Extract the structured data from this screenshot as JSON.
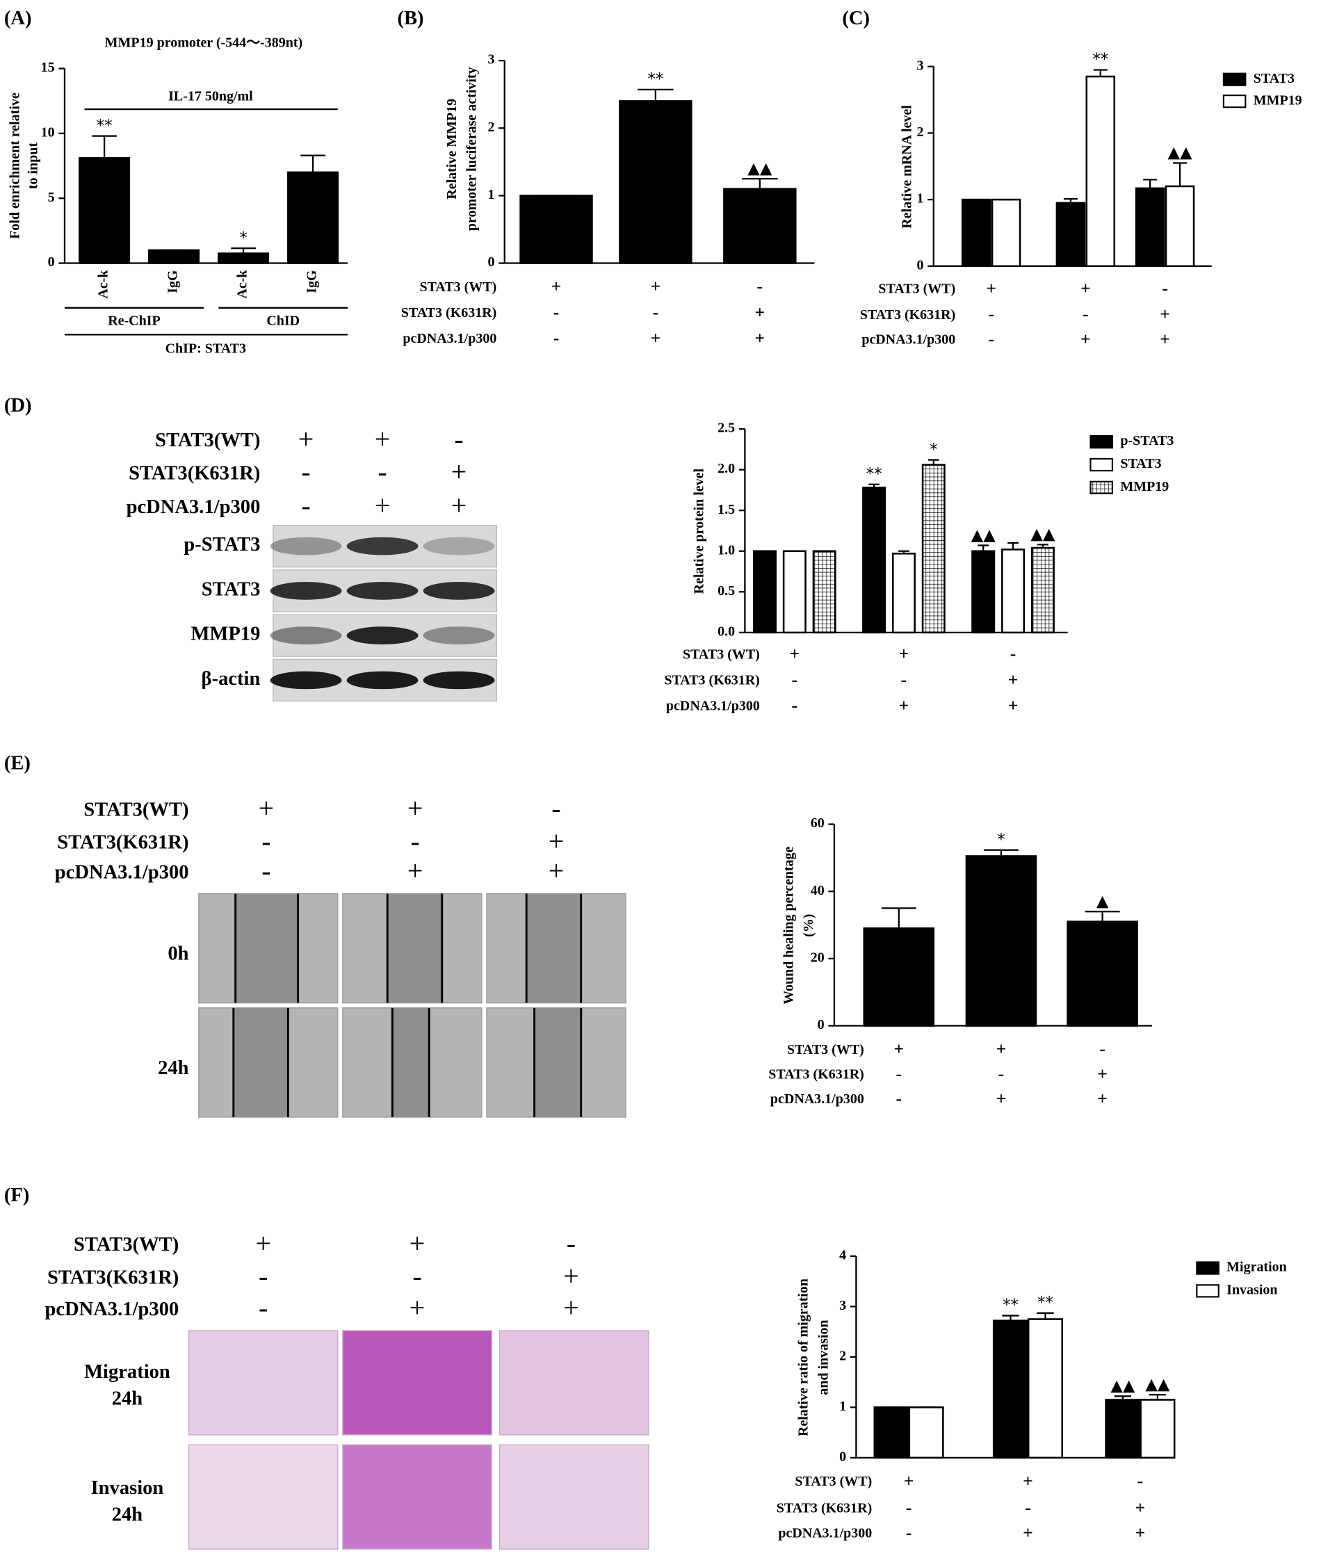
{
  "chart_data": [
    {
      "type": "bar",
      "panel": "(A)",
      "title": "MMP19 promoter (-544～-389nt)",
      "ylabel": [
        "Fold enrichment relative",
        "to input"
      ],
      "ylim": [
        0,
        15
      ],
      "yticks": [
        0,
        5,
        10,
        15
      ],
      "categories": [
        "Ac-k",
        "IgG",
        "Ac-k",
        "IgG"
      ],
      "values": [
        8.1,
        1.0,
        0.75,
        7.0
      ],
      "errors": [
        1.7,
        0,
        0.4,
        1.3
      ],
      "marks": [
        "**",
        null,
        "*",
        null
      ],
      "color": "#000000",
      "bracket": "IL-17 50ng/ml",
      "groups": [
        "Re-ChIP",
        "ChID"
      ],
      "group_label": "ChIP: STAT3"
    },
    {
      "type": "bar",
      "panel": "(B)",
      "ylabel": [
        "Relative MMP19",
        "promoter luciferase activity"
      ],
      "ylim": [
        0,
        3
      ],
      "yticks": [
        0,
        1,
        2,
        3
      ],
      "values": [
        1.0,
        2.4,
        1.1
      ],
      "errors": [
        0,
        0.17,
        0.15
      ],
      "marks": [
        null,
        "**",
        "▲▲"
      ],
      "color": "#000000",
      "conditions": [
        {
          "name": "STAT3 (WT)",
          "signs": [
            "+",
            "+",
            "-"
          ]
        },
        {
          "name": "STAT3 (K631R)",
          "signs": [
            "-",
            "-",
            "+"
          ]
        },
        {
          "name": "pcDNA3.1/p300",
          "signs": [
            "-",
            "+",
            "+"
          ]
        }
      ]
    },
    {
      "type": "bar",
      "panel": "(C)",
      "ylabel": [
        "Relative mRNA level"
      ],
      "ylim": [
        0,
        3
      ],
      "yticks": [
        0,
        1,
        2,
        3
      ],
      "series": [
        {
          "name": "STAT3",
          "color": "#000000",
          "values": [
            1.0,
            0.95,
            1.17
          ],
          "errors": [
            0,
            0.06,
            0.13
          ],
          "marks": [
            null,
            null,
            null
          ]
        },
        {
          "name": "MMP19",
          "color": "#ffffff",
          "values": [
            1.0,
            2.85,
            1.2
          ],
          "errors": [
            0,
            0.1,
            0.35
          ],
          "marks": [
            null,
            "**",
            "▲▲"
          ]
        }
      ],
      "conditions": [
        {
          "name": "STAT3 (WT)",
          "signs": [
            "+",
            "+",
            "-"
          ]
        },
        {
          "name": "STAT3 (K631R)",
          "signs": [
            "-",
            "-",
            "+"
          ]
        },
        {
          "name": "pcDNA3.1/p300",
          "signs": [
            "-",
            "+",
            "+"
          ]
        }
      ]
    },
    {
      "type": "bar",
      "panel": "(D)",
      "ylabel": [
        "Relative protein level"
      ],
      "ylim": [
        0,
        2.5
      ],
      "yticks": [
        {
          "value": 0,
          "label": "0.0"
        },
        {
          "value": 0.5,
          "label": "0.5"
        },
        {
          "value": 1,
          "label": "1.0"
        },
        {
          "value": 1.5,
          "label": "1.5"
        },
        {
          "value": 2,
          "label": "2.0"
        },
        {
          "value": 2.5,
          "label": "2.5"
        }
      ],
      "series": [
        {
          "name": "p-STAT3",
          "color": "#000000",
          "values": [
            1.0,
            1.78,
            1.0
          ],
          "errors": [
            0,
            0.04,
            0.07
          ],
          "marks": [
            null,
            "**",
            "▲▲"
          ]
        },
        {
          "name": "STAT3",
          "color": "#ffffff",
          "values": [
            1.0,
            0.97,
            1.02
          ],
          "errors": [
            0,
            0.03,
            0.08
          ],
          "marks": [
            null,
            null,
            null
          ]
        },
        {
          "name": "MMP19",
          "color": "#ffffff",
          "hatch": "grid",
          "values": [
            1.0,
            2.06,
            1.04
          ],
          "errors": [
            0,
            0.06,
            0.04
          ],
          "marks": [
            null,
            "*",
            "▲▲"
          ]
        }
      ],
      "conditions": [
        {
          "name": "STAT3 (WT)",
          "signs": [
            "+",
            "+",
            "-"
          ]
        },
        {
          "name": "STAT3 (K631R)",
          "signs": [
            "-",
            "-",
            "+"
          ]
        },
        {
          "name": "pcDNA3.1/p300",
          "signs": [
            "-",
            "+",
            "+"
          ]
        }
      ],
      "image_panel": {
        "conditions": [
          {
            "name": "STAT3(WT)",
            "signs": [
              "+",
              "+",
              "-"
            ]
          },
          {
            "name": "STAT3(K631R)",
            "signs": [
              "-",
              "-",
              "+"
            ]
          },
          {
            "name": "pcDNA3.1/p300",
            "signs": [
              "-",
              "+",
              "+"
            ]
          }
        ],
        "rows": [
          "p-STAT3",
          "STAT3",
          "MMP19",
          "β-actin"
        ]
      }
    },
    {
      "type": "bar",
      "panel": "(E)",
      "ylabel": [
        "Wound healing percentage",
        "(%)"
      ],
      "ylim": [
        0,
        60
      ],
      "yticks": [
        0,
        20,
        40,
        60
      ],
      "values": [
        29,
        50.5,
        31
      ],
      "errors": [
        6,
        1.8,
        3
      ],
      "marks": [
        null,
        "*",
        "▲"
      ],
      "color": "#000000",
      "conditions": [
        {
          "name": "STAT3 (WT)",
          "signs": [
            "+",
            "+",
            "-"
          ]
        },
        {
          "name": "STAT3 (K631R)",
          "signs": [
            "-",
            "-",
            "+"
          ]
        },
        {
          "name": "pcDNA3.1/p300",
          "signs": [
            "-",
            "+",
            "+"
          ]
        }
      ],
      "image_panel": {
        "conditions": [
          {
            "name": "STAT3(WT)",
            "signs": [
              "+",
              "+",
              "-"
            ]
          },
          {
            "name": "STAT3(K631R)",
            "signs": [
              "-",
              "-",
              "+"
            ]
          },
          {
            "name": "pcDNA3.1/p300",
            "signs": [
              "-",
              "+",
              "+"
            ]
          }
        ],
        "rows": [
          "0h",
          "24h"
        ]
      }
    },
    {
      "type": "bar",
      "panel": "(F)",
      "ylabel": [
        "Relative ratio of migration",
        "and invasion"
      ],
      "ylim": [
        0,
        4
      ],
      "yticks": [
        0,
        1,
        2,
        3,
        4
      ],
      "series": [
        {
          "name": "Migration",
          "color": "#000000",
          "values": [
            1.0,
            2.72,
            1.15
          ],
          "errors": [
            0,
            0.1,
            0.07
          ],
          "marks": [
            null,
            "**",
            "▲▲"
          ]
        },
        {
          "name": "Invasion",
          "color": "#ffffff",
          "values": [
            1.0,
            2.75,
            1.15
          ],
          "errors": [
            0,
            0.12,
            0.1
          ],
          "marks": [
            null,
            "**",
            "▲▲"
          ]
        }
      ],
      "conditions": [
        {
          "name": "STAT3 (WT)",
          "signs": [
            "+",
            "+",
            "-"
          ]
        },
        {
          "name": "STAT3 (K631R)",
          "signs": [
            "-",
            "-",
            "+"
          ]
        },
        {
          "name": "pcDNA3.1/p300",
          "signs": [
            "-",
            "+",
            "+"
          ]
        }
      ],
      "image_panel": {
        "conditions": [
          {
            "name": "STAT3(WT)",
            "signs": [
              "+",
              "+",
              "-"
            ]
          },
          {
            "name": "STAT3(K631R)",
            "signs": [
              "-",
              "-",
              "+"
            ]
          },
          {
            "name": "pcDNA3.1/p300",
            "signs": [
              "-",
              "+",
              "+"
            ]
          }
        ],
        "rows": [
          [
            "Migration",
            "24h"
          ],
          [
            "Invasion",
            "24h"
          ]
        ]
      }
    }
  ]
}
